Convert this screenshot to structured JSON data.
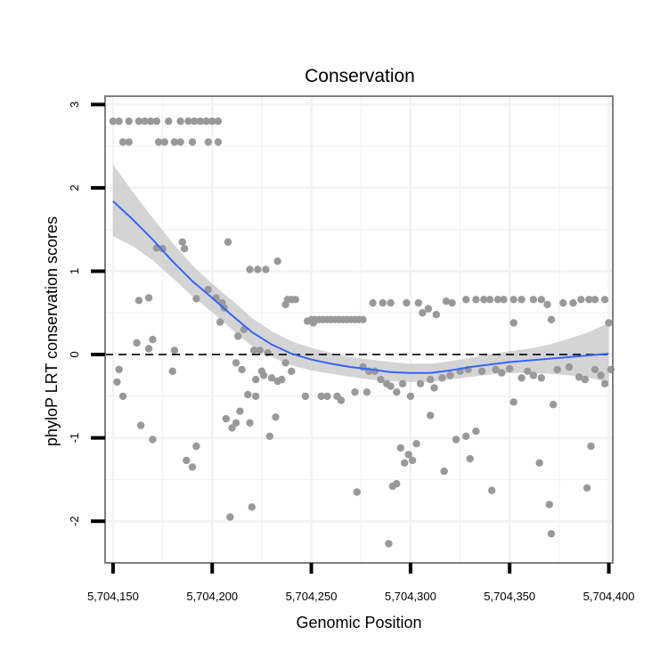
{
  "chart_data": {
    "type": "scatter",
    "title": "Conservation",
    "xlabel": "Genomic Position",
    "ylabel": "phyloP LRT conservation scores",
    "xlim": [
      5704146,
      5704402
    ],
    "ylim": [
      -2.5,
      3.1
    ],
    "xticks": [
      5704150,
      5704200,
      5704250,
      5704300,
      5704350,
      5704400
    ],
    "xtick_labels": [
      "5,704,150",
      "5,704,200",
      "5,704,250",
      "5,704,300",
      "5,704,350",
      "5,704,400"
    ],
    "yticks": [
      -2,
      -1,
      0,
      1,
      2,
      3
    ],
    "ytick_labels": [
      "-2",
      "-1",
      "0",
      "1",
      "2",
      "3"
    ],
    "grid": true,
    "reference_line": {
      "y": 0,
      "style": "dashed"
    },
    "colors": {
      "points": "#999999",
      "smooth": "#3366ff",
      "ribbon": "#cccccc",
      "panel_border": "#7f7f7f",
      "grid": "#f2f2f2"
    },
    "points": [
      {
        "x": 5704150,
        "y": 2.8
      },
      {
        "x": 5704153,
        "y": 2.8
      },
      {
        "x": 5704158,
        "y": 2.8
      },
      {
        "x": 5704163,
        "y": 2.8
      },
      {
        "x": 5704166,
        "y": 2.8
      },
      {
        "x": 5704169,
        "y": 2.8
      },
      {
        "x": 5704172,
        "y": 2.8
      },
      {
        "x": 5704178,
        "y": 2.8
      },
      {
        "x": 5704184,
        "y": 2.8
      },
      {
        "x": 5704188,
        "y": 2.8
      },
      {
        "x": 5704191,
        "y": 2.8
      },
      {
        "x": 5704194,
        "y": 2.8
      },
      {
        "x": 5704197,
        "y": 2.8
      },
      {
        "x": 5704200,
        "y": 2.8
      },
      {
        "x": 5704203,
        "y": 2.8
      },
      {
        "x": 5704155,
        "y": 2.55
      },
      {
        "x": 5704158,
        "y": 2.55
      },
      {
        "x": 5704173,
        "y": 2.55
      },
      {
        "x": 5704176,
        "y": 2.55
      },
      {
        "x": 5704181,
        "y": 2.55
      },
      {
        "x": 5704184,
        "y": 2.55
      },
      {
        "x": 5704190,
        "y": 2.55
      },
      {
        "x": 5704198,
        "y": 2.55
      },
      {
        "x": 5704203,
        "y": 2.55
      },
      {
        "x": 5704172,
        "y": 1.28
      },
      {
        "x": 5704175,
        "y": 1.27
      },
      {
        "x": 5704185,
        "y": 1.35
      },
      {
        "x": 5704186,
        "y": 1.27
      },
      {
        "x": 5704208,
        "y": 1.35
      },
      {
        "x": 5704219,
        "y": 1.02
      },
      {
        "x": 5704223,
        "y": 1.02
      },
      {
        "x": 5704227,
        "y": 1.02
      },
      {
        "x": 5704233,
        "y": 1.12
      },
      {
        "x": 5704163,
        "y": 0.65
      },
      {
        "x": 5704168,
        "y": 0.68
      },
      {
        "x": 5704192,
        "y": 0.67
      },
      {
        "x": 5704198,
        "y": 0.78
      },
      {
        "x": 5704202,
        "y": 0.68
      },
      {
        "x": 5704205,
        "y": 0.62
      },
      {
        "x": 5704206,
        "y": 0.56
      },
      {
        "x": 5704204,
        "y": 0.39
      },
      {
        "x": 5704162,
        "y": 0.14
      },
      {
        "x": 5704168,
        "y": 0.07
      },
      {
        "x": 5704170,
        "y": 0.18
      },
      {
        "x": 5704181,
        "y": 0.05
      },
      {
        "x": 5704213,
        "y": 0.22
      },
      {
        "x": 5704216,
        "y": 0.3
      },
      {
        "x": 5704221,
        "y": 0.05
      },
      {
        "x": 5704224,
        "y": 0.05
      },
      {
        "x": 5704228,
        "y": 0.02
      },
      {
        "x": 5704153,
        "y": -0.18
      },
      {
        "x": 5704152,
        "y": -0.33
      },
      {
        "x": 5704155,
        "y": -0.5
      },
      {
        "x": 5704180,
        "y": -0.2
      },
      {
        "x": 5704212,
        "y": -0.1
      },
      {
        "x": 5704215,
        "y": -0.18
      },
      {
        "x": 5704218,
        "y": -0.48
      },
      {
        "x": 5704222,
        "y": -0.3
      },
      {
        "x": 5704225,
        "y": -0.2
      },
      {
        "x": 5704226,
        "y": -0.25
      },
      {
        "x": 5704230,
        "y": -0.28
      },
      {
        "x": 5704233,
        "y": -0.32
      },
      {
        "x": 5704235,
        "y": -0.3
      },
      {
        "x": 5704164,
        "y": -0.85
      },
      {
        "x": 5704170,
        "y": -1.02
      },
      {
        "x": 5704187,
        "y": -1.27
      },
      {
        "x": 5704190,
        "y": -1.35
      },
      {
        "x": 5704192,
        "y": -1.1
      },
      {
        "x": 5704207,
        "y": -0.77
      },
      {
        "x": 5704210,
        "y": -0.88
      },
      {
        "x": 5704212,
        "y": -0.82
      },
      {
        "x": 5704214,
        "y": -0.68
      },
      {
        "x": 5704219,
        "y": -0.82
      },
      {
        "x": 5704222,
        "y": -0.5
      },
      {
        "x": 5704229,
        "y": -0.98
      },
      {
        "x": 5704232,
        "y": -0.75
      },
      {
        "x": 5704209,
        "y": -1.95
      },
      {
        "x": 5704220,
        "y": -1.83
      },
      {
        "x": 5704237,
        "y": 0.6
      },
      {
        "x": 5704238,
        "y": 0.66
      },
      {
        "x": 5704240,
        "y": 0.66
      },
      {
        "x": 5704242,
        "y": 0.66
      },
      {
        "x": 5704248,
        "y": 0.4
      },
      {
        "x": 5704250,
        "y": 0.42
      },
      {
        "x": 5704252,
        "y": 0.42
      },
      {
        "x": 5704254,
        "y": 0.42
      },
      {
        "x": 5704256,
        "y": 0.42
      },
      {
        "x": 5704258,
        "y": 0.42
      },
      {
        "x": 5704260,
        "y": 0.42
      },
      {
        "x": 5704262,
        "y": 0.42
      },
      {
        "x": 5704264,
        "y": 0.42
      },
      {
        "x": 5704266,
        "y": 0.42
      },
      {
        "x": 5704268,
        "y": 0.42
      },
      {
        "x": 5704270,
        "y": 0.42
      },
      {
        "x": 5704272,
        "y": 0.42
      },
      {
        "x": 5704274,
        "y": 0.42
      },
      {
        "x": 5704276,
        "y": 0.42
      },
      {
        "x": 5704251,
        "y": 0.38
      },
      {
        "x": 5704237,
        "y": -0.1
      },
      {
        "x": 5704240,
        "y": -0.2
      },
      {
        "x": 5704247,
        "y": -0.5
      },
      {
        "x": 5704255,
        "y": -0.5
      },
      {
        "x": 5704258,
        "y": -0.5
      },
      {
        "x": 5704263,
        "y": -0.5
      },
      {
        "x": 5704265,
        "y": -0.55
      },
      {
        "x": 5704272,
        "y": -0.45
      },
      {
        "x": 5704273,
        "y": -1.65
      },
      {
        "x": 5704276,
        "y": -0.15
      },
      {
        "x": 5704279,
        "y": -0.2
      },
      {
        "x": 5704282,
        "y": -0.2
      },
      {
        "x": 5704285,
        "y": -0.3
      },
      {
        "x": 5704288,
        "y": -0.35
      },
      {
        "x": 5704290,
        "y": -0.38
      },
      {
        "x": 5704293,
        "y": -0.45
      },
      {
        "x": 5704278,
        "y": -0.45
      },
      {
        "x": 5704281,
        "y": 0.62
      },
      {
        "x": 5704286,
        "y": 0.62
      },
      {
        "x": 5704290,
        "y": 0.62
      },
      {
        "x": 5704298,
        "y": 0.62
      },
      {
        "x": 5704304,
        "y": 0.62
      },
      {
        "x": 5704306,
        "y": 0.5
      },
      {
        "x": 5704309,
        "y": 0.55
      },
      {
        "x": 5704313,
        "y": 0.48
      },
      {
        "x": 5704318,
        "y": 0.64
      },
      {
        "x": 5704321,
        "y": 0.62
      },
      {
        "x": 5704328,
        "y": 0.66
      },
      {
        "x": 5704333,
        "y": 0.66
      },
      {
        "x": 5704337,
        "y": 0.66
      },
      {
        "x": 5704340,
        "y": 0.66
      },
      {
        "x": 5704344,
        "y": 0.66
      },
      {
        "x": 5704347,
        "y": 0.66
      },
      {
        "x": 5704352,
        "y": 0.66
      },
      {
        "x": 5704356,
        "y": 0.66
      },
      {
        "x": 5704362,
        "y": 0.66
      },
      {
        "x": 5704366,
        "y": 0.66
      },
      {
        "x": 5704369,
        "y": 0.6
      },
      {
        "x": 5704377,
        "y": 0.62
      },
      {
        "x": 5704382,
        "y": 0.62
      },
      {
        "x": 5704386,
        "y": 0.66
      },
      {
        "x": 5704390,
        "y": 0.66
      },
      {
        "x": 5704393,
        "y": 0.66
      },
      {
        "x": 5704398,
        "y": 0.66
      },
      {
        "x": 5704352,
        "y": 0.38
      },
      {
        "x": 5704371,
        "y": 0.42
      },
      {
        "x": 5704400,
        "y": 0.38
      },
      {
        "x": 5704289,
        "y": -2.27
      },
      {
        "x": 5704291,
        "y": -1.58
      },
      {
        "x": 5704293,
        "y": -1.55
      },
      {
        "x": 5704295,
        "y": -1.12
      },
      {
        "x": 5704297,
        "y": -1.3
      },
      {
        "x": 5704299,
        "y": -1.2
      },
      {
        "x": 5704301,
        "y": -1.27
      },
      {
        "x": 5704303,
        "y": -1.07
      },
      {
        "x": 5704310,
        "y": -0.73
      },
      {
        "x": 5704296,
        "y": -0.35
      },
      {
        "x": 5704300,
        "y": -0.5
      },
      {
        "x": 5704305,
        "y": -0.35
      },
      {
        "x": 5704312,
        "y": -0.4
      },
      {
        "x": 5704317,
        "y": -1.4
      },
      {
        "x": 5704323,
        "y": -1.02
      },
      {
        "x": 5704328,
        "y": -0.98
      },
      {
        "x": 5704330,
        "y": -1.25
      },
      {
        "x": 5704333,
        "y": -0.92
      },
      {
        "x": 5704341,
        "y": -1.63
      },
      {
        "x": 5704352,
        "y": -0.57
      },
      {
        "x": 5704365,
        "y": -1.3
      },
      {
        "x": 5704370,
        "y": -1.8
      },
      {
        "x": 5704372,
        "y": -0.6
      },
      {
        "x": 5704371,
        "y": -2.15
      },
      {
        "x": 5704389,
        "y": -1.6
      },
      {
        "x": 5704391,
        "y": -1.1
      },
      {
        "x": 5704310,
        "y": -0.3
      },
      {
        "x": 5704316,
        "y": -0.28
      },
      {
        "x": 5704320,
        "y": -0.25
      },
      {
        "x": 5704325,
        "y": -0.2
      },
      {
        "x": 5704329,
        "y": -0.18
      },
      {
        "x": 5704336,
        "y": -0.2
      },
      {
        "x": 5704343,
        "y": -0.18
      },
      {
        "x": 5704346,
        "y": -0.22
      },
      {
        "x": 5704350,
        "y": -0.17
      },
      {
        "x": 5704356,
        "y": -0.28
      },
      {
        "x": 5704359,
        "y": -0.2
      },
      {
        "x": 5704362,
        "y": -0.25
      },
      {
        "x": 5704366,
        "y": -0.28
      },
      {
        "x": 5704374,
        "y": -0.18
      },
      {
        "x": 5704380,
        "y": -0.15
      },
      {
        "x": 5704385,
        "y": -0.27
      },
      {
        "x": 5704388,
        "y": -0.3
      },
      {
        "x": 5704393,
        "y": -0.18
      },
      {
        "x": 5704396,
        "y": -0.25
      },
      {
        "x": 5704398,
        "y": -0.35
      },
      {
        "x": 5704401,
        "y": -0.18
      }
    ],
    "smooth": [
      {
        "x": 5704150,
        "y": 1.84,
        "lo": 1.42,
        "hi": 2.28
      },
      {
        "x": 5704160,
        "y": 1.62,
        "lo": 1.3,
        "hi": 1.95
      },
      {
        "x": 5704170,
        "y": 1.38,
        "lo": 1.13,
        "hi": 1.64
      },
      {
        "x": 5704180,
        "y": 1.12,
        "lo": 0.92,
        "hi": 1.34
      },
      {
        "x": 5704190,
        "y": 0.88,
        "lo": 0.7,
        "hi": 1.07
      },
      {
        "x": 5704200,
        "y": 0.68,
        "lo": 0.51,
        "hi": 0.85
      },
      {
        "x": 5704210,
        "y": 0.47,
        "lo": 0.3,
        "hi": 0.65
      },
      {
        "x": 5704220,
        "y": 0.27,
        "lo": 0.1,
        "hi": 0.44
      },
      {
        "x": 5704230,
        "y": 0.12,
        "lo": -0.03,
        "hi": 0.28
      },
      {
        "x": 5704240,
        "y": 0.01,
        "lo": -0.13,
        "hi": 0.16
      },
      {
        "x": 5704250,
        "y": -0.06,
        "lo": -0.19,
        "hi": 0.08
      },
      {
        "x": 5704260,
        "y": -0.11,
        "lo": -0.23,
        "hi": 0.02
      },
      {
        "x": 5704270,
        "y": -0.15,
        "lo": -0.27,
        "hi": -0.03
      },
      {
        "x": 5704280,
        "y": -0.18,
        "lo": -0.3,
        "hi": -0.06
      },
      {
        "x": 5704290,
        "y": -0.21,
        "lo": -0.32,
        "hi": -0.09
      },
      {
        "x": 5704300,
        "y": -0.22,
        "lo": -0.33,
        "hi": -0.11
      },
      {
        "x": 5704310,
        "y": -0.22,
        "lo": -0.33,
        "hi": -0.11
      },
      {
        "x": 5704320,
        "y": -0.19,
        "lo": -0.3,
        "hi": -0.08
      },
      {
        "x": 5704330,
        "y": -0.15,
        "lo": -0.27,
        "hi": -0.04
      },
      {
        "x": 5704340,
        "y": -0.12,
        "lo": -0.24,
        "hi": 0.0
      },
      {
        "x": 5704350,
        "y": -0.09,
        "lo": -0.22,
        "hi": 0.04
      },
      {
        "x": 5704360,
        "y": -0.07,
        "lo": -0.22,
        "hi": 0.07
      },
      {
        "x": 5704370,
        "y": -0.05,
        "lo": -0.23,
        "hi": 0.12
      },
      {
        "x": 5704380,
        "y": -0.03,
        "lo": -0.25,
        "hi": 0.19
      },
      {
        "x": 5704390,
        "y": -0.01,
        "lo": -0.28,
        "hi": 0.27
      },
      {
        "x": 5704400,
        "y": 0.01,
        "lo": -0.33,
        "hi": 0.38
      }
    ]
  }
}
